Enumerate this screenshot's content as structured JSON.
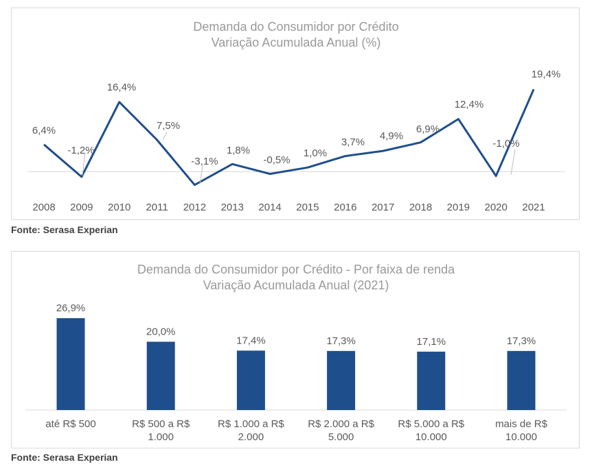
{
  "sources": {
    "top": "Fonte: Serasa Experian",
    "bottom": "Fonte: Serasa Experian"
  },
  "chart_data": [
    {
      "type": "line",
      "title": "Demanda do Consumidor por Crédito",
      "subtitle": "Variação Acumulada Anual (%)",
      "x": [
        "2008",
        "2009",
        "2010",
        "2011",
        "2012",
        "2013",
        "2014",
        "2015",
        "2016",
        "2017",
        "2018",
        "2019",
        "2020",
        "2021"
      ],
      "series": [
        {
          "values": [
            6.4,
            -1.2,
            16.4,
            7.5,
            -3.1,
            1.8,
            -0.5,
            1.0,
            3.7,
            4.9,
            6.9,
            12.4,
            -1.0,
            19.4
          ]
        }
      ],
      "data_labels": [
        "6,4%",
        "-1,2%",
        "16,4%",
        "7,5%",
        "-3,1%",
        "1,8%",
        "-0,5%",
        "1,0%",
        "3,7%",
        "4,9%",
        "6,9%",
        "12,4%",
        "-1,0%",
        "19,4%"
      ],
      "color": "#1f4e8c",
      "grid": false
    },
    {
      "type": "bar",
      "title": "Demanda do Consumidor por Crédito - Por faixa de renda",
      "subtitle": "Variação Acumulada Anual (2021)",
      "categories": [
        [
          "até R$ 500"
        ],
        [
          "R$ 500 a R$",
          "1.000"
        ],
        [
          "R$ 1.000 a R$",
          "2.000"
        ],
        [
          "R$ 2.000 a R$",
          "5.000"
        ],
        [
          "R$ 5.000 a R$",
          "10.000"
        ],
        [
          "mais de R$",
          "10.000"
        ]
      ],
      "values": [
        26.9,
        20.0,
        17.4,
        17.3,
        17.1,
        17.3
      ],
      "data_labels": [
        "26,9%",
        "20,0%",
        "17,4%",
        "17,3%",
        "17,1%",
        "17,3%"
      ],
      "color": "#1f4e8c",
      "grid": false
    }
  ]
}
